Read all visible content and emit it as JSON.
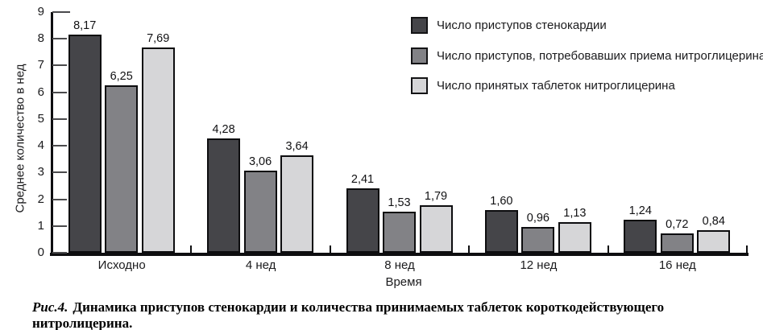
{
  "figure": {
    "caption_prefix": "Рис.4.",
    "caption_text": "Динамика приступов стенокардии и количества принимаемых таблеток короткодействующего нитролицерина."
  },
  "chart_data": {
    "type": "bar",
    "title": "",
    "categories": [
      "Исходно",
      "4 нед",
      "8 нед",
      "12 нед",
      "16 нед"
    ],
    "series": [
      {
        "name": "Число приступов стенокардии",
        "color": "#454549",
        "values": [
          8.17,
          4.28,
          2.41,
          1.6,
          1.24
        ],
        "labels": [
          "8,17",
          "4,28",
          "2,41",
          "1,60",
          "1,24"
        ]
      },
      {
        "name": "Число приступов, потребовавших приема нитроглицерина",
        "color": "#828286",
        "values": [
          6.25,
          3.06,
          1.53,
          0.96,
          0.72
        ],
        "labels": [
          "6,25",
          "3,06",
          "1,53",
          "0,96",
          "0,72"
        ]
      },
      {
        "name": "Число принятых таблеток нитроглицерина",
        "color": "#d6d6d8",
        "values": [
          7.69,
          3.64,
          1.79,
          1.13,
          0.84
        ],
        "labels": [
          "7,69",
          "3,64",
          "1,79",
          "1,13",
          "0,84"
        ]
      }
    ],
    "xlabel": "Время",
    "ylabel": "Среднее количество в нед",
    "ylim": [
      0,
      9
    ],
    "yticks": [
      0,
      1,
      2,
      3,
      4,
      5,
      6,
      7,
      8,
      9
    ],
    "legend_position": "top-right",
    "grid": false,
    "bar_border_color": "#0d0d0f",
    "axis_color": "#0e0e10"
  }
}
